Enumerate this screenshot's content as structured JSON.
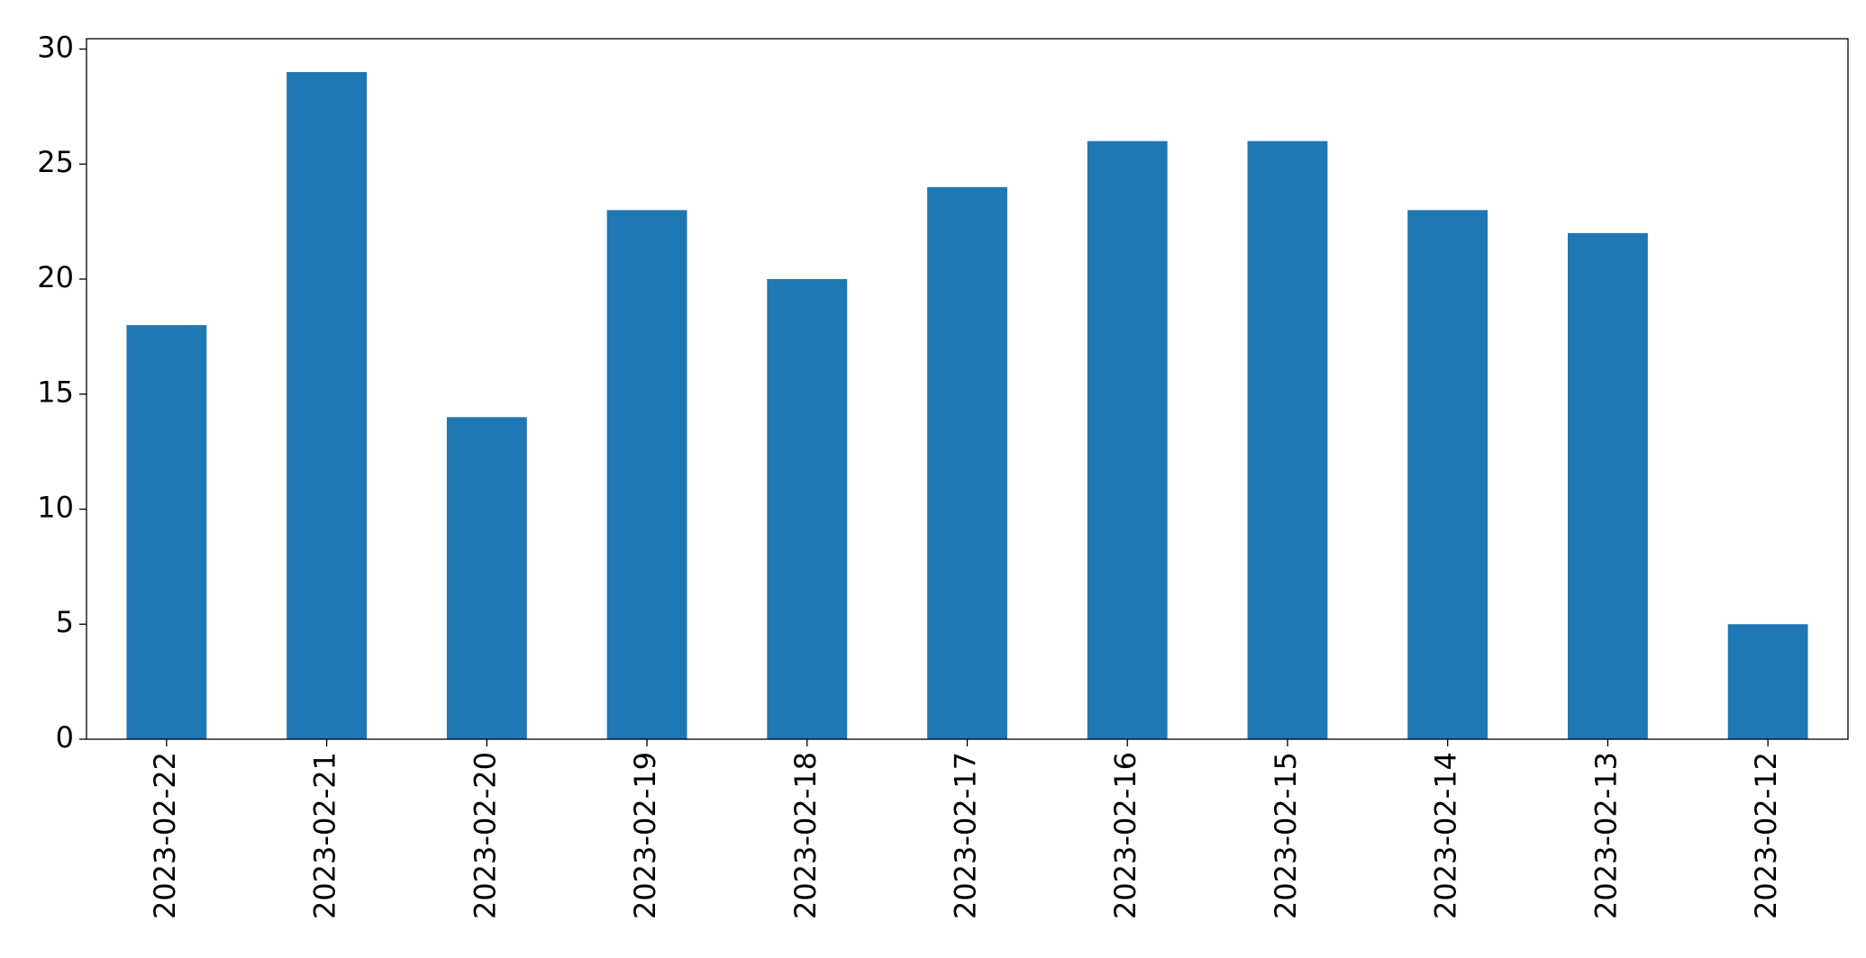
{
  "chart_data": {
    "type": "bar",
    "categories": [
      "2023-02-22",
      "2023-02-21",
      "2023-02-20",
      "2023-02-19",
      "2023-02-18",
      "2023-02-17",
      "2023-02-16",
      "2023-02-15",
      "2023-02-14",
      "2023-02-13",
      "2023-02-12"
    ],
    "values": [
      18,
      29,
      14,
      23,
      20,
      24,
      26,
      26,
      23,
      22,
      5
    ],
    "color": "#1f77b4",
    "ylim": [
      0,
      30.45
    ],
    "yticks": [
      0,
      5,
      10,
      15,
      20,
      25,
      30
    ],
    "grid": false
  }
}
